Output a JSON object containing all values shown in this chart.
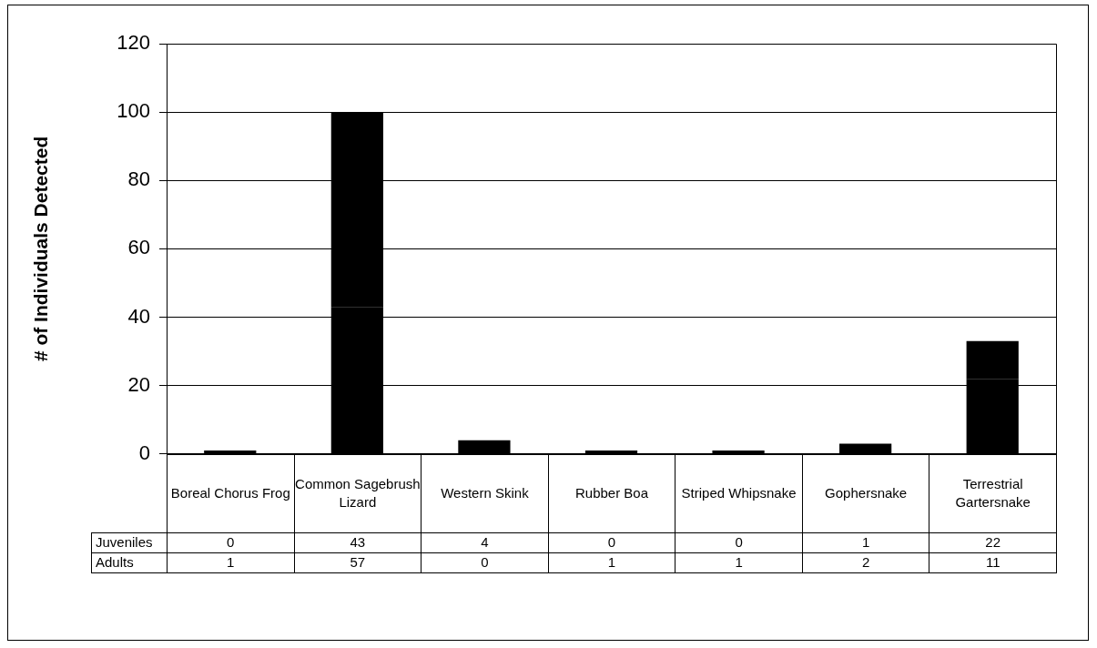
{
  "chart_data": {
    "type": "bar",
    "ylabel": "# of Individuals Detected",
    "categories": [
      "Boreal Chorus Frog",
      "Common Sagebrush Lizard",
      "Western Skink",
      "Rubber Boa",
      "Striped Whipsnake",
      "Gophersnake",
      "Terrestrial Gartersnake"
    ],
    "stacked": true,
    "series": [
      {
        "name": "Juveniles",
        "color": "#000000",
        "values": [
          0,
          43,
          4,
          0,
          0,
          1,
          22
        ]
      },
      {
        "name": "Adults",
        "color": "#000000",
        "values": [
          1,
          57,
          0,
          1,
          1,
          2,
          11
        ]
      }
    ],
    "ylim": [
      0,
      120
    ],
    "yticks": [
      0,
      20,
      40,
      60,
      80,
      100,
      120
    ],
    "grid": "y",
    "legend": false,
    "data_labels": true
  }
}
